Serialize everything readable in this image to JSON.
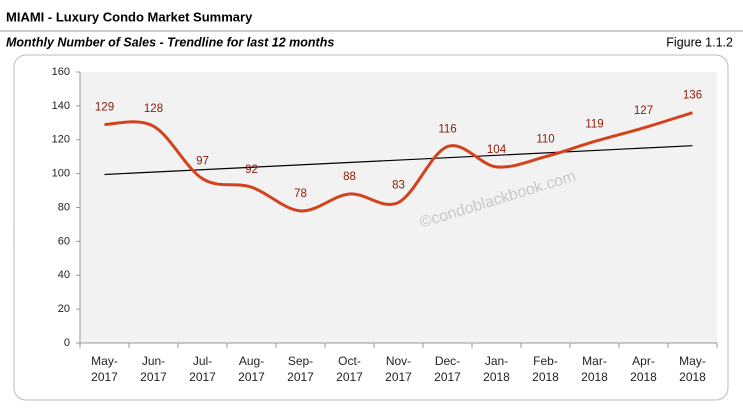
{
  "header": {
    "title": "MIAMI - Luxury Condo Market Summary",
    "subtitle": "Monthly Number of Sales - Trendline for last 12 months",
    "figure": "Figure 1.1.2"
  },
  "chart_data": {
    "type": "line",
    "categories": [
      "May-2017",
      "Jun-2017",
      "Jul-2017",
      "Aug-2017",
      "Sep-2017",
      "Oct-2017",
      "Nov-2017",
      "Dec-2017",
      "Jan-2018",
      "Feb-2018",
      "Mar-2018",
      "Apr-2018",
      "May-2018"
    ],
    "series": [
      {
        "color": "#d4421c",
        "values": [
          129,
          128,
          97,
          92,
          78,
          88,
          83,
          116,
          104,
          110,
          119,
          127,
          136
        ]
      }
    ],
    "trendline": {
      "color": "#000000",
      "start": 99.5,
      "end": 116.5
    },
    "ylim": [
      0,
      160
    ],
    "yticks": [
      0,
      20,
      40,
      60,
      80,
      100,
      120,
      140,
      160
    ],
    "watermark": "©condoblackbook.com",
    "label_color": "#8b1a0a",
    "background": "#f2f2f2"
  }
}
